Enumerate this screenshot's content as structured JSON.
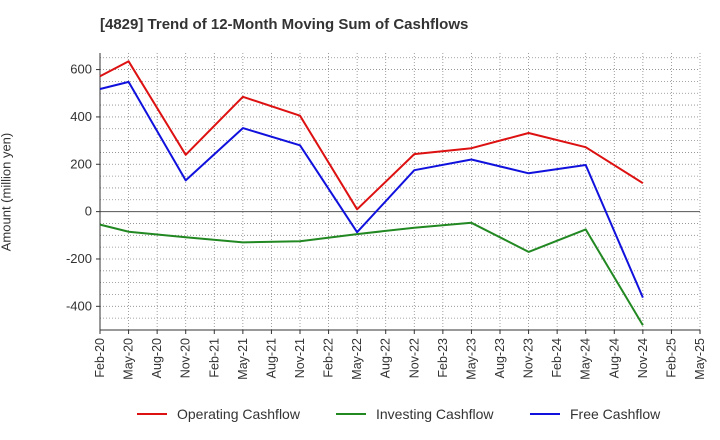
{
  "chart_data": {
    "type": "line",
    "title": "[4829]  Trend of 12-Month Moving Sum of Cashflows",
    "ylabel": "Amount (million yen)",
    "xlabel": "",
    "ylim": [
      -500,
      670
    ],
    "yticks": [
      600,
      400,
      200,
      0,
      -200,
      -400
    ],
    "ytick_labels": [
      "600",
      "400",
      "200",
      "0",
      "-200",
      "-400"
    ],
    "categories": [
      "Feb-20",
      "May-20",
      "Aug-20",
      "Nov-20",
      "Feb-21",
      "May-21",
      "Aug-21",
      "Nov-21",
      "Feb-22",
      "May-22",
      "Aug-22",
      "Nov-22",
      "Feb-23",
      "May-23",
      "Aug-23",
      "Nov-23",
      "Feb-24",
      "May-24",
      "Aug-24",
      "Nov-24",
      "Feb-25",
      "May-25"
    ],
    "grid": true,
    "legend_position": "bottom",
    "series": [
      {
        "name": "Operating Cashflow",
        "color": "#dd1111",
        "points": [
          [
            0,
            572
          ],
          [
            1,
            635
          ],
          [
            3,
            240
          ],
          [
            5,
            485
          ],
          [
            7,
            405
          ],
          [
            9,
            10
          ],
          [
            11,
            243
          ],
          [
            13,
            268
          ],
          [
            15,
            332
          ],
          [
            17,
            272
          ],
          [
            19,
            120
          ]
        ]
      },
      {
        "name": "Investing Cashflow",
        "color": "#228822",
        "points": [
          [
            0,
            -55
          ],
          [
            1,
            -85
          ],
          [
            3,
            -108
          ],
          [
            5,
            -130
          ],
          [
            7,
            -125
          ],
          [
            9,
            -95
          ],
          [
            11,
            -68
          ],
          [
            13,
            -47
          ],
          [
            15,
            -170
          ],
          [
            17,
            -75
          ],
          [
            19,
            -480
          ]
        ]
      },
      {
        "name": "Free Cashflow",
        "color": "#1111dd",
        "points": [
          [
            0,
            518
          ],
          [
            1,
            548
          ],
          [
            3,
            132
          ],
          [
            5,
            353
          ],
          [
            7,
            280
          ],
          [
            9,
            -87
          ],
          [
            11,
            175
          ],
          [
            13,
            220
          ],
          [
            15,
            162
          ],
          [
            17,
            197
          ],
          [
            19,
            -363
          ]
        ]
      }
    ]
  }
}
